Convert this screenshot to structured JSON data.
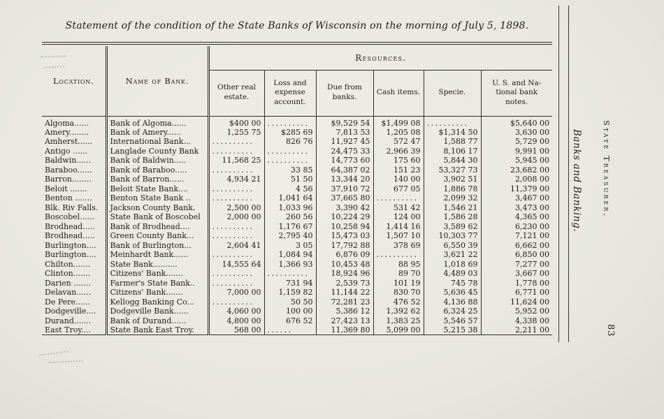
{
  "page": {
    "title": "Statement of the condition of the State Banks of Wisconsin on the morning of July 5, 1898.",
    "margin_notes": {
      "running_title": "Banks and Banking.",
      "department": "State Treasurer.",
      "page_number": "83"
    }
  },
  "table": {
    "headers": {
      "location": "Location.",
      "bank": "Name of Bank.",
      "resources_group": "Resources.",
      "resource_columns": [
        "Other real\nestate.",
        "Loss and\nexpense\naccount.",
        "Due from\nbanks.",
        "Cash items.",
        "Specie.",
        "U. S. and Na-\ntional bank\nnotes."
      ]
    },
    "rows": [
      {
        "location": "Algoma......",
        "bank": "Bank of Algoma......",
        "values": [
          "$400 00",
          "..........",
          "$9,529 54",
          "$1,499 08",
          "..........",
          "$5,640 00"
        ]
      },
      {
        "location": "Amery........",
        "bank": "Bank of Amery......",
        "values": [
          "1,255 75",
          "$285 69",
          "7,813 53",
          "1,205 08",
          "$1,314 50",
          "3,630 00"
        ]
      },
      {
        "location": "Amherst......",
        "bank": "International Bank...",
        "values": [
          "..........",
          "826 76",
          "11,927 45",
          "572 47",
          "1,588 77",
          "5,729 00"
        ]
      },
      {
        "location": "Antigo ......",
        "bank": "Langlade County Bank",
        "values": [
          "..........",
          "..........",
          "24,475 33",
          "2,966 39",
          "8,106 17",
          "9,991 00"
        ]
      },
      {
        "location": "Baldwin......",
        "bank": "Bank of Baldwin.....",
        "values": [
          "11,568 25",
          "..........",
          "14,773 60",
          "175 60",
          "5,844 30",
          "5,945 00"
        ]
      },
      {
        "location": "Baraboo......",
        "bank": "Bank of Baraboo.....",
        "values": [
          "..........",
          "33 85",
          "64,387 02",
          "151 23",
          "53,327 73",
          "23,682 00"
        ]
      },
      {
        "location": "Barron........",
        "bank": "Bank of Barron......",
        "values": [
          "4,934 21",
          "51 50",
          "13,344 20",
          "140 00",
          "3,902 51",
          "2,008 00"
        ]
      },
      {
        "location": "Beloit .......",
        "bank": "Beloit State Bank....",
        "values": [
          "..........",
          "4 56",
          "37,910 72",
          "677 05",
          "1,886 78",
          "11,379 00"
        ]
      },
      {
        "location": "Benton .......",
        "bank": "Benton State Bank ..",
        "values": [
          "..........",
          "1,041 64",
          "37,665 80",
          "..........",
          "2,099 32",
          "3,467 00"
        ]
      },
      {
        "location": "Blk. Riv Falls.",
        "bank": "Jackson County Bank.",
        "values": [
          "2,500 00",
          "1,033 96",
          "3,390 42",
          "531 42",
          "1,546 21",
          "3,473 00"
        ]
      },
      {
        "location": "Boscobel......",
        "bank": "State Bank of Boscobel",
        "values": [
          "2,000 00",
          "260 56",
          "10,224 29",
          "124 00",
          "1,586 28",
          "4,365 00"
        ]
      },
      {
        "location": "Brodhead.....",
        "bank": "Bank of Brodhead....",
        "values": [
          "..........",
          "1,176 67",
          "10,258 94",
          "1,414 16",
          "3,589 62",
          "6,230 00"
        ]
      },
      {
        "location": "Brodhead.....",
        "bank": "Green County Bank...",
        "values": [
          "..........",
          "2,795 40",
          "15,473 03",
          "1,507 10",
          "10,303 77",
          "7,121 00"
        ]
      },
      {
        "location": "Burlington....",
        "bank": "Bank of Burlington...",
        "values": [
          "2,604 41",
          "3 05",
          "17,792 88",
          "378 69",
          "6,550 39",
          "6,662 00"
        ]
      },
      {
        "location": "Burlington....",
        "bank": "Meinhardt Bank......",
        "values": [
          "..........",
          "1,084 94",
          "6,876 09",
          "..........",
          "3,621 22",
          "6,850 00"
        ]
      },
      {
        "location": "Chilton.......",
        "bank": "State Bank..........",
        "values": [
          "14,555 64",
          "1,366 93",
          "10,453 48",
          "88 95",
          "1,018 69",
          "7,277 00"
        ]
      },
      {
        "location": "Clinton.......",
        "bank": "Citizens' Bank.......",
        "values": [
          "..........",
          "..........",
          "18,924 96",
          "89 70",
          "4,489 03",
          "3,667 00"
        ]
      },
      {
        "location": "Darien .......",
        "bank": "Farmer's State Bank..",
        "values": [
          "..........",
          "731 94",
          "2,539 73",
          "101 19",
          "745 78",
          "1,778 00"
        ]
      },
      {
        "location": "Delavan......",
        "bank": "Citizens' Bank.......",
        "values": [
          "7,000 00",
          "1,159 82",
          "11,144 22",
          "830 70",
          "5,636 45",
          "6,771 00"
        ]
      },
      {
        "location": "De Pere......",
        "bank": "Kellogg Banking Co...",
        "values": [
          "..........",
          "50 50",
          "72,281 23",
          "476 52",
          "4,136 88",
          "11,624 00"
        ]
      },
      {
        "location": "Dodgeville....",
        "bank": "Dodgeville Bank......",
        "values": [
          "4,060 00",
          "100 00",
          "5,386 12",
          "1,392 62",
          "6,324 25",
          "5,952 00"
        ]
      },
      {
        "location": "Durand.......",
        "bank": "Bank of Durand......",
        "values": [
          "4,800 00",
          "676 52",
          "27,423 13",
          "1,383 25",
          "5,546 57",
          "4,338 00"
        ]
      },
      {
        "location": "East Troy....",
        "bank": "State Bank East Troy.",
        "values": [
          "568 00",
          "......",
          "11,369 80",
          "5,099 00",
          "5,215 38",
          "2,211 00"
        ]
      }
    ]
  }
}
